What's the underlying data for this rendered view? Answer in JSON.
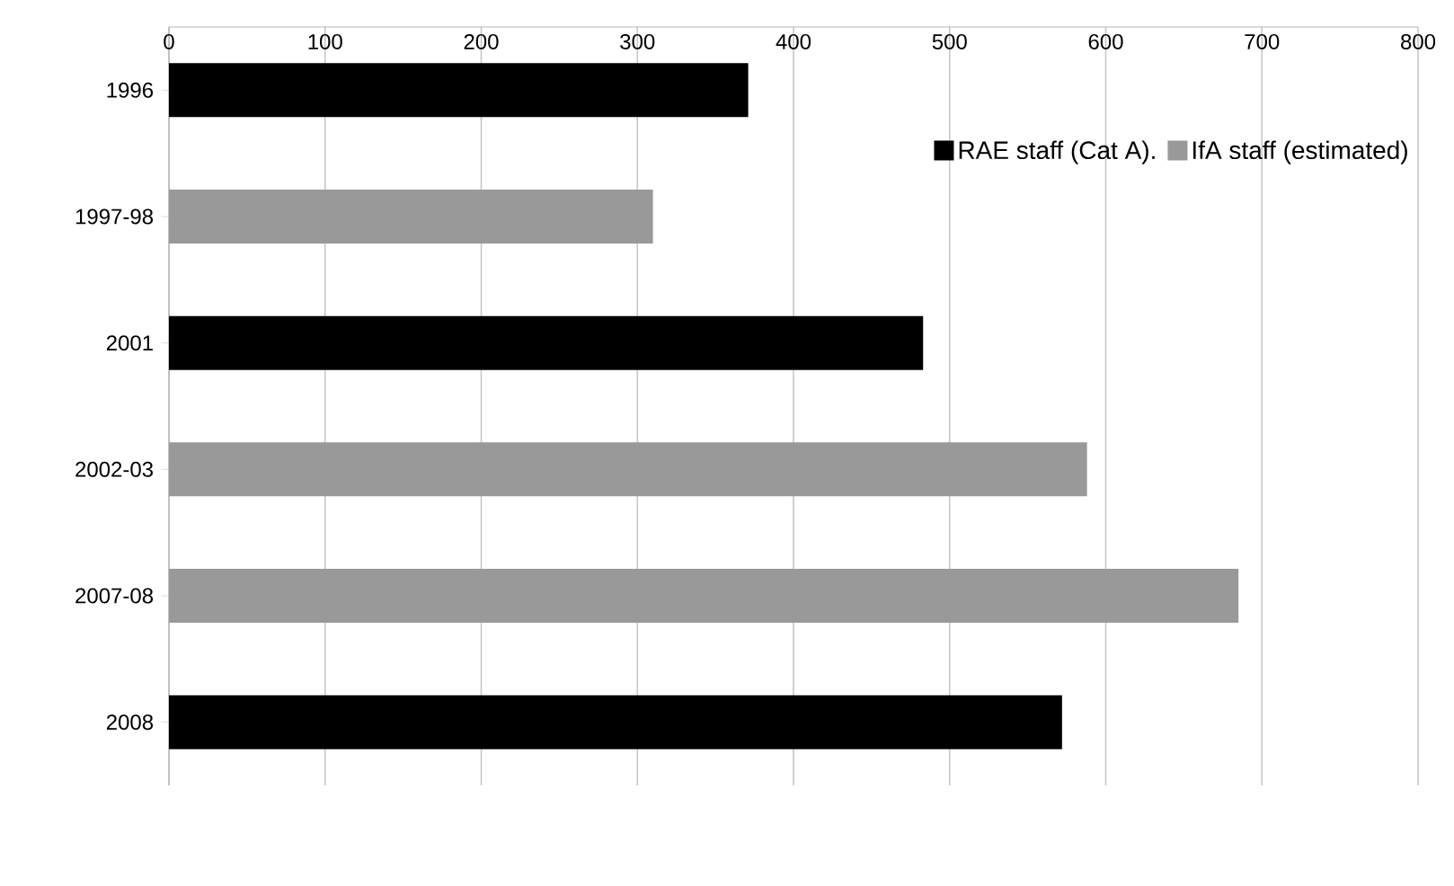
{
  "chart_data": {
    "type": "bar",
    "orientation": "horizontal",
    "categories": [
      "1996",
      "1997-98",
      "2001",
      "2002-03",
      "2007-08",
      "2008"
    ],
    "series": [
      {
        "name": "RAE staff (Cat A).",
        "color": "#000000",
        "values": [
          371,
          null,
          483,
          null,
          null,
          572
        ]
      },
      {
        "name": "IfA staff (estimated)",
        "color": "#999999",
        "values": [
          null,
          310,
          null,
          588,
          685,
          null
        ]
      }
    ],
    "xlim": [
      0,
      800
    ],
    "xticks": [
      0,
      100,
      200,
      300,
      400,
      500,
      600,
      700,
      800
    ],
    "grid": "x",
    "legend": "top right"
  }
}
